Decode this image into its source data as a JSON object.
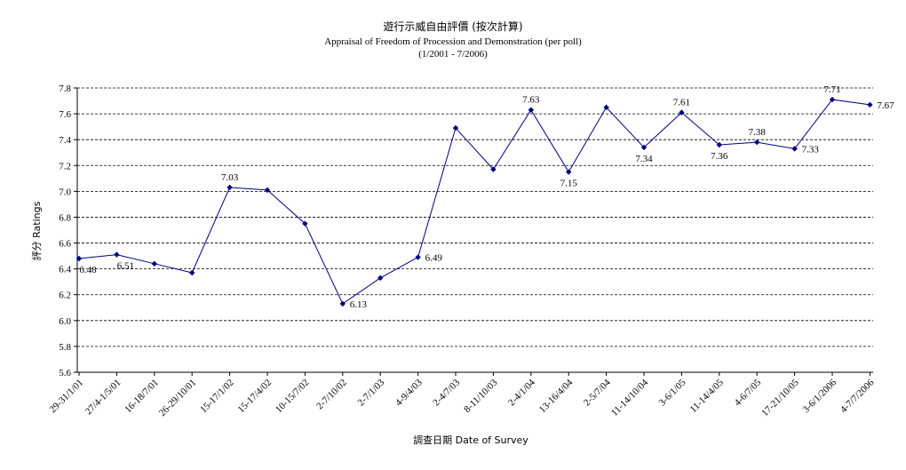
{
  "chart_data": {
    "type": "line",
    "title": "遊行示威自由評價 (按次計算)",
    "subtitle": "Appraisal of Freedom of Procession and Demonstration (per poll)",
    "period": "(1/2001 - 7/2006)",
    "xlabel": "調查日期 Date of Survey",
    "ylabel": "評分 Ratings",
    "ylim": [
      5.6,
      7.8
    ],
    "yticks": [
      "5.6",
      "5.8",
      "6.0",
      "6.2",
      "6.4",
      "6.6",
      "6.8",
      "7.0",
      "7.2",
      "7.4",
      "7.6",
      "7.8"
    ],
    "grid": true,
    "categories": [
      "29-31/1/01",
      "27/4-1/5/01",
      "16-18/7/01",
      "26-29/10/01",
      "15-17/1/02",
      "15-17/4/02",
      "10-15/7/02",
      "2-7/10/02",
      "2-7/1/03",
      "4-9/4/03",
      "2-4/7/03",
      "8-11/10/03",
      "2-4/1/04",
      "13-16/4/04",
      "2-5/7/04",
      "11-14/10/04",
      "3-6/1/05",
      "11-14/4/05",
      "4-6/7/05",
      "17-21/10/05",
      "3-6/1/2006",
      "4-7/7/2006"
    ],
    "values": [
      6.48,
      6.51,
      6.44,
      6.37,
      7.03,
      7.01,
      6.75,
      6.13,
      6.33,
      6.49,
      7.49,
      7.17,
      7.63,
      7.15,
      7.65,
      7.34,
      7.61,
      7.36,
      7.38,
      7.33,
      7.71,
      7.67
    ],
    "data_labels": [
      "6.48",
      "6.51",
      null,
      null,
      "7.03",
      null,
      null,
      "6.13",
      null,
      "6.49",
      null,
      null,
      "7.63",
      "7.15",
      null,
      "7.34",
      "7.61",
      "7.36",
      "7.38",
      "7.33",
      "7.71",
      "7.67"
    ],
    "line_color": "#000080",
    "marker_color": "#000080"
  }
}
